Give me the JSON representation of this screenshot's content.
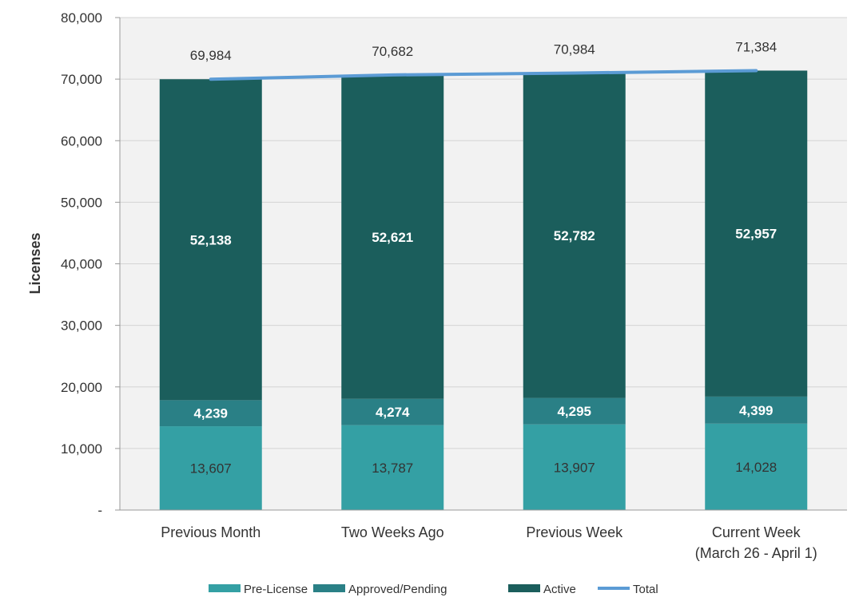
{
  "chart_data": {
    "type": "bar",
    "stacked": true,
    "title": "",
    "xlabel": "",
    "ylabel": "Licenses",
    "ylim": [
      0,
      80000
    ],
    "yticks": [
      0,
      10000,
      20000,
      30000,
      40000,
      50000,
      60000,
      70000,
      80000
    ],
    "ytick_labels": [
      "-",
      "10,000",
      "20,000",
      "30,000",
      "40,000",
      "50,000",
      "60,000",
      "70,000",
      "80,000"
    ],
    "categories": [
      [
        "Previous Month"
      ],
      [
        "Two Weeks Ago"
      ],
      [
        "Previous Week"
      ],
      [
        "Current Week",
        "(March 26 - April 1)"
      ]
    ],
    "series": [
      {
        "name": "Pre-License",
        "color": "#34a0a4",
        "values": [
          13607,
          13787,
          13907,
          14028
        ],
        "labels": [
          "13,607",
          "13,787",
          "13,907",
          "14,028"
        ],
        "label_style": "dark"
      },
      {
        "name": "Approved/Pending",
        "color": "#2a8086",
        "values": [
          4239,
          4274,
          4295,
          4399
        ],
        "labels": [
          "4,239",
          "4,274",
          "4,295",
          "4,399"
        ],
        "label_style": "white"
      },
      {
        "name": "Active",
        "color": "#1b5e5c",
        "values": [
          52138,
          52621,
          52782,
          52957
        ],
        "labels": [
          "52,138",
          "52,621",
          "52,782",
          "52,957"
        ],
        "label_style": "white"
      }
    ],
    "total": {
      "name": "Total",
      "color": "#5b9bd5",
      "values": [
        69984,
        70682,
        70984,
        71384
      ],
      "labels": [
        "69,984",
        "70,682",
        "70,984",
        "71,384"
      ],
      "type": "line"
    },
    "grid": true,
    "plot_background": "#f2f2f2",
    "legend_position": "bottom"
  }
}
